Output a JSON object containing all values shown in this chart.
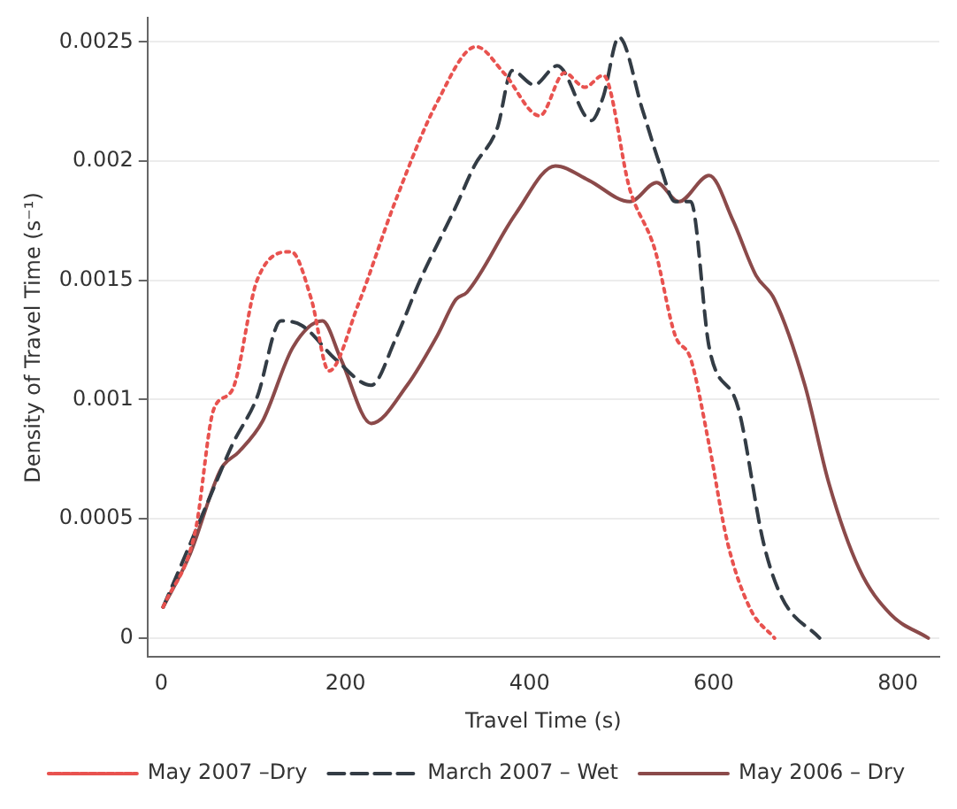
{
  "chart_data": {
    "type": "line",
    "xlabel": "Travel Time (s)",
    "ylabel": "Density of Travel Time (s⁻¹)",
    "xlim": [
      -15,
      845
    ],
    "ylim": [
      -8e-05,
      0.0026
    ],
    "xticks": [
      0,
      200,
      400,
      600,
      800
    ],
    "yticks": [
      0,
      0.0005,
      0.001,
      0.0015,
      0.002,
      0.0025
    ],
    "grid": "y",
    "legend": "bottom",
    "marker": "none",
    "series": [
      {
        "name": "May 2007 –Dry",
        "color": "#e8524f",
        "line_style": "dotted",
        "x": [
          2,
          37,
          57,
          77,
          104,
          141,
          163,
          182,
          214,
          254,
          300,
          342,
          372,
          411,
          438,
          460,
          480,
          509,
          536,
          558,
          575,
          595,
          615,
          640,
          666
        ],
        "values": [
          0.00013,
          0.00045,
          0.00096,
          0.00104,
          0.0015,
          0.00162,
          0.00142,
          0.00112,
          0.0014,
          0.00183,
          0.00225,
          0.00248,
          0.00237,
          0.00219,
          0.00237,
          0.00231,
          0.00236,
          0.00188,
          0.00163,
          0.00127,
          0.00117,
          0.00081,
          0.0004,
          0.00012,
          0
        ]
      },
      {
        "name": "March 2007 – Wet",
        "color": "#333c45",
        "line_style": "dashed",
        "x": [
          2,
          22,
          57,
          77,
          104,
          130,
          153,
          189,
          228,
          254,
          281,
          320,
          340,
          365,
          381,
          405,
          430,
          467,
          480,
          497,
          523,
          542,
          558,
          575,
          595,
          627,
          654,
          674,
          715
        ],
        "values": [
          0.00013,
          0.00031,
          0.00063,
          0.00081,
          0.00101,
          0.00133,
          0.00131,
          0.00117,
          0.00106,
          0.00125,
          0.0015,
          0.00181,
          0.00198,
          0.00214,
          0.00238,
          0.00232,
          0.0024,
          0.00217,
          0.00227,
          0.00252,
          0.00221,
          0.00198,
          0.00183,
          0.00183,
          0.00122,
          0.00096,
          0.0004,
          0.00017,
          0
        ]
      },
      {
        "name": "May 2006 – Dry",
        "color": "#8b4a4a",
        "line_style": "solid",
        "x": [
          2,
          31,
          65,
          84,
          110,
          143,
          175,
          195,
          228,
          267,
          300,
          320,
          332,
          385,
          428,
          464,
          509,
          538,
          562,
          595,
          621,
          646,
          666,
          699,
          725,
          758,
          792,
          833
        ],
        "values": [
          0.00013,
          0.00035,
          0.00071,
          0.00078,
          0.00091,
          0.00122,
          0.00133,
          0.00117,
          0.0009,
          0.00106,
          0.00127,
          0.00142,
          0.00145,
          0.00178,
          0.00198,
          0.00192,
          0.00183,
          0.00191,
          0.00183,
          0.00194,
          0.00175,
          0.00152,
          0.00142,
          0.00106,
          0.00065,
          0.00029,
          0.0001,
          0
        ]
      }
    ]
  }
}
